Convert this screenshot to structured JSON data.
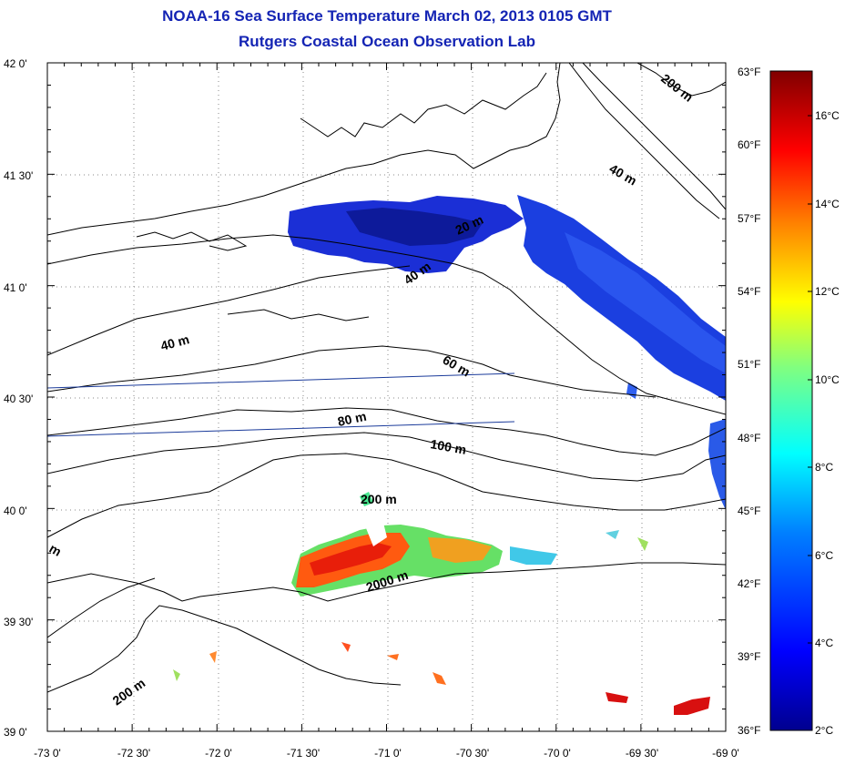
{
  "title": "NOAA-16 Sea Surface Temperature March 02, 2013 0105 GMT",
  "subtitle": "Rutgers Coastal Ocean Observation Lab",
  "map": {
    "lat_range": [
      39.0,
      42.0
    ],
    "lon_range": [
      -73.0,
      -69.0
    ],
    "lat_ticks": [
      "42 0'",
      "41 30'",
      "41 0'",
      "40 30'",
      "40 0'",
      "39 30'",
      "39 0'"
    ],
    "lon_ticks": [
      "-73 0'",
      "-72 30'",
      "-72 0'",
      "-71 30'",
      "-71 0'",
      "-70 30'",
      "-70 0'",
      "-69 30'",
      "-69 0'"
    ],
    "fahrenheit_ticks": [
      "63°F",
      "60°F",
      "57°F",
      "54°F",
      "51°F",
      "48°F",
      "45°F",
      "42°F",
      "39°F",
      "36°F"
    ],
    "contour_labels": [
      "200 m",
      "40 m",
      "20 m",
      "40 m",
      "40 m",
      "60 m",
      "80 m",
      "100 m",
      "200 m",
      "2000 m",
      "200 m",
      "m"
    ]
  },
  "colorbar": {
    "celsius_ticks": [
      "16°C",
      "14°C",
      "12°C",
      "10°C",
      "8°C",
      "6°C",
      "4°C",
      "2°C"
    ],
    "colors": [
      "#00008f",
      "#0000ff",
      "#0080ff",
      "#00ffff",
      "#80ff80",
      "#ffff00",
      "#ff8000",
      "#ff0000",
      "#800000"
    ]
  }
}
